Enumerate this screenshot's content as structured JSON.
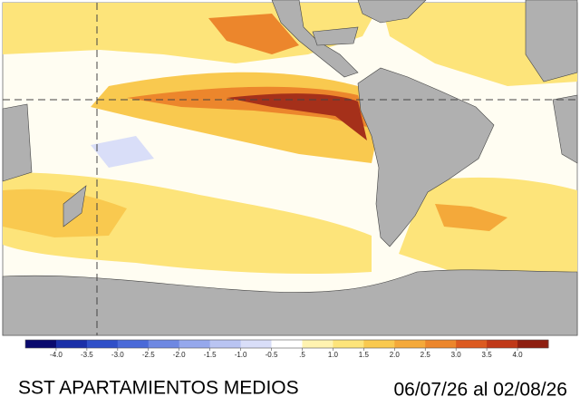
{
  "map": {
    "title": "SST APARTAMIENTOS MEDIOS",
    "date_range": "06/07/26 al 02/08/26"
  },
  "colorbar": {
    "colors": [
      "#0a0a6e",
      "#1a2fa8",
      "#2f4fc8",
      "#4a6ad8",
      "#6e88e2",
      "#95a8ec",
      "#b9c4f2",
      "#d9def8",
      "#ffffff",
      "#fff3b0",
      "#fde47a",
      "#f9c94f",
      "#f4a93a",
      "#ec862c",
      "#dc5a20",
      "#c03818",
      "#8e1e10"
    ],
    "labels": [
      "-4.0",
      "-3.5",
      "-3.0",
      "-2.5",
      "-2.0",
      "-1.5",
      "-1.0",
      "-0.5",
      ".5",
      "1.0",
      "1.5",
      "2.0",
      "2.5",
      "3.0",
      "3.5",
      "4.0"
    ]
  }
}
